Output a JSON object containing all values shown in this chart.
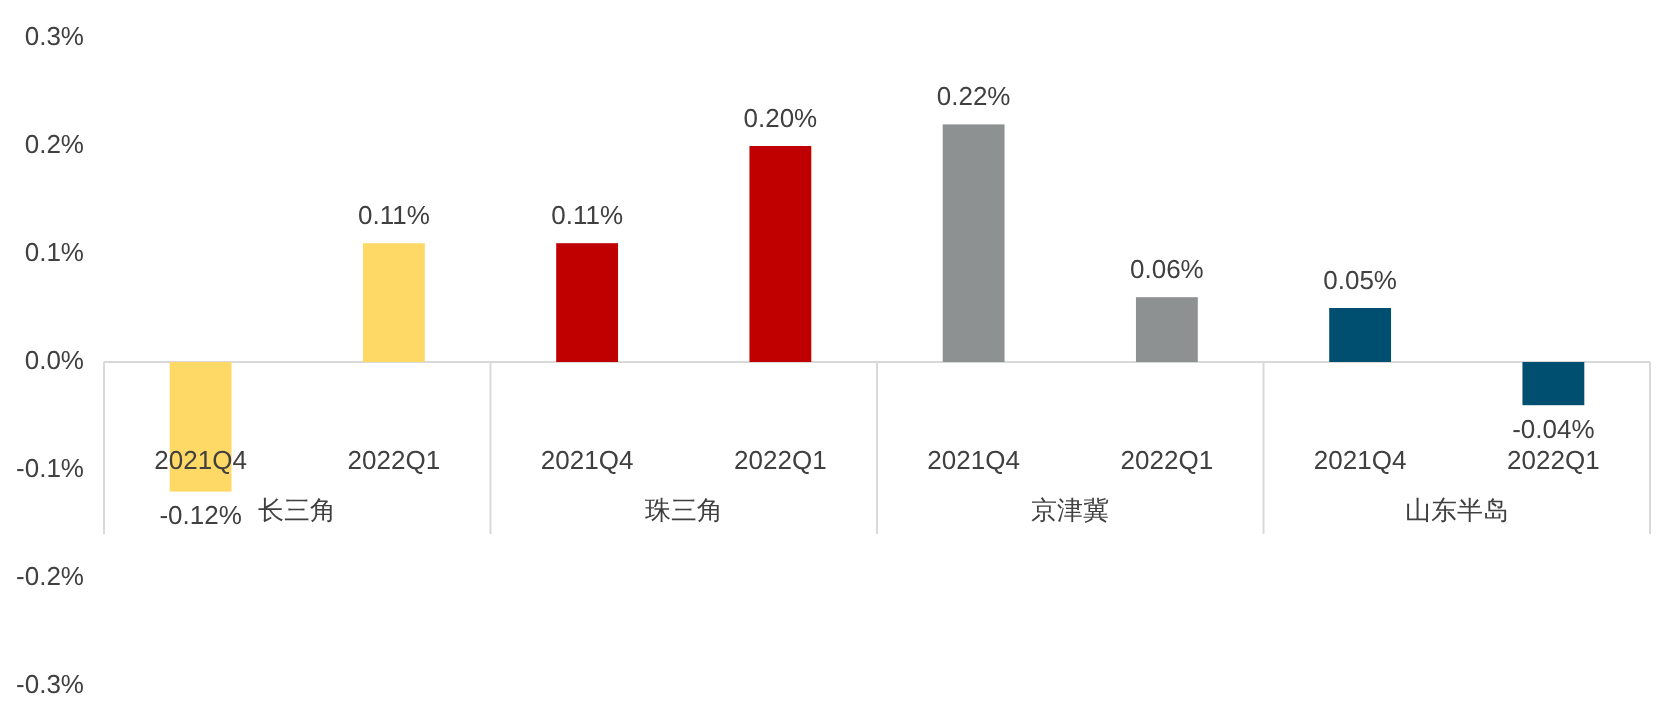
{
  "chart_data": {
    "type": "bar",
    "categories": [
      "2021Q4",
      "2022Q1",
      "2021Q4",
      "2022Q1",
      "2021Q4",
      "2022Q1",
      "2021Q4",
      "2022Q1"
    ],
    "values": [
      -0.12,
      0.11,
      0.11,
      0.2,
      0.22,
      0.06,
      0.05,
      -0.04
    ],
    "colors": [
      "#ffd966",
      "#ffd966",
      "#c00000",
      "#c00000",
      "#8e9191",
      "#8e9191",
      "#004f71",
      "#004f71"
    ],
    "value_labels": [
      "-0.12%",
      "0.11%",
      "0.11%",
      "0.20%",
      "0.22%",
      "0.06%",
      "0.05%",
      "-0.04%"
    ],
    "annotations": [
      "长三角",
      "珠三角",
      "京津冀",
      "山东半岛"
    ],
    "ylim": [
      -0.3,
      0.3
    ],
    "yticks": [
      {
        "value": 0.3,
        "label": "0.3%"
      },
      {
        "value": 0.2,
        "label": "0.2%"
      },
      {
        "value": 0.1,
        "label": "0.1%"
      },
      {
        "value": 0,
        "label": "0.0%"
      },
      {
        "value": -0.1,
        "label": "-0.1%"
      },
      {
        "value": -0.2,
        "label": "-0.2%"
      },
      {
        "value": -0.3,
        "label": "-0.3%"
      }
    ]
  }
}
